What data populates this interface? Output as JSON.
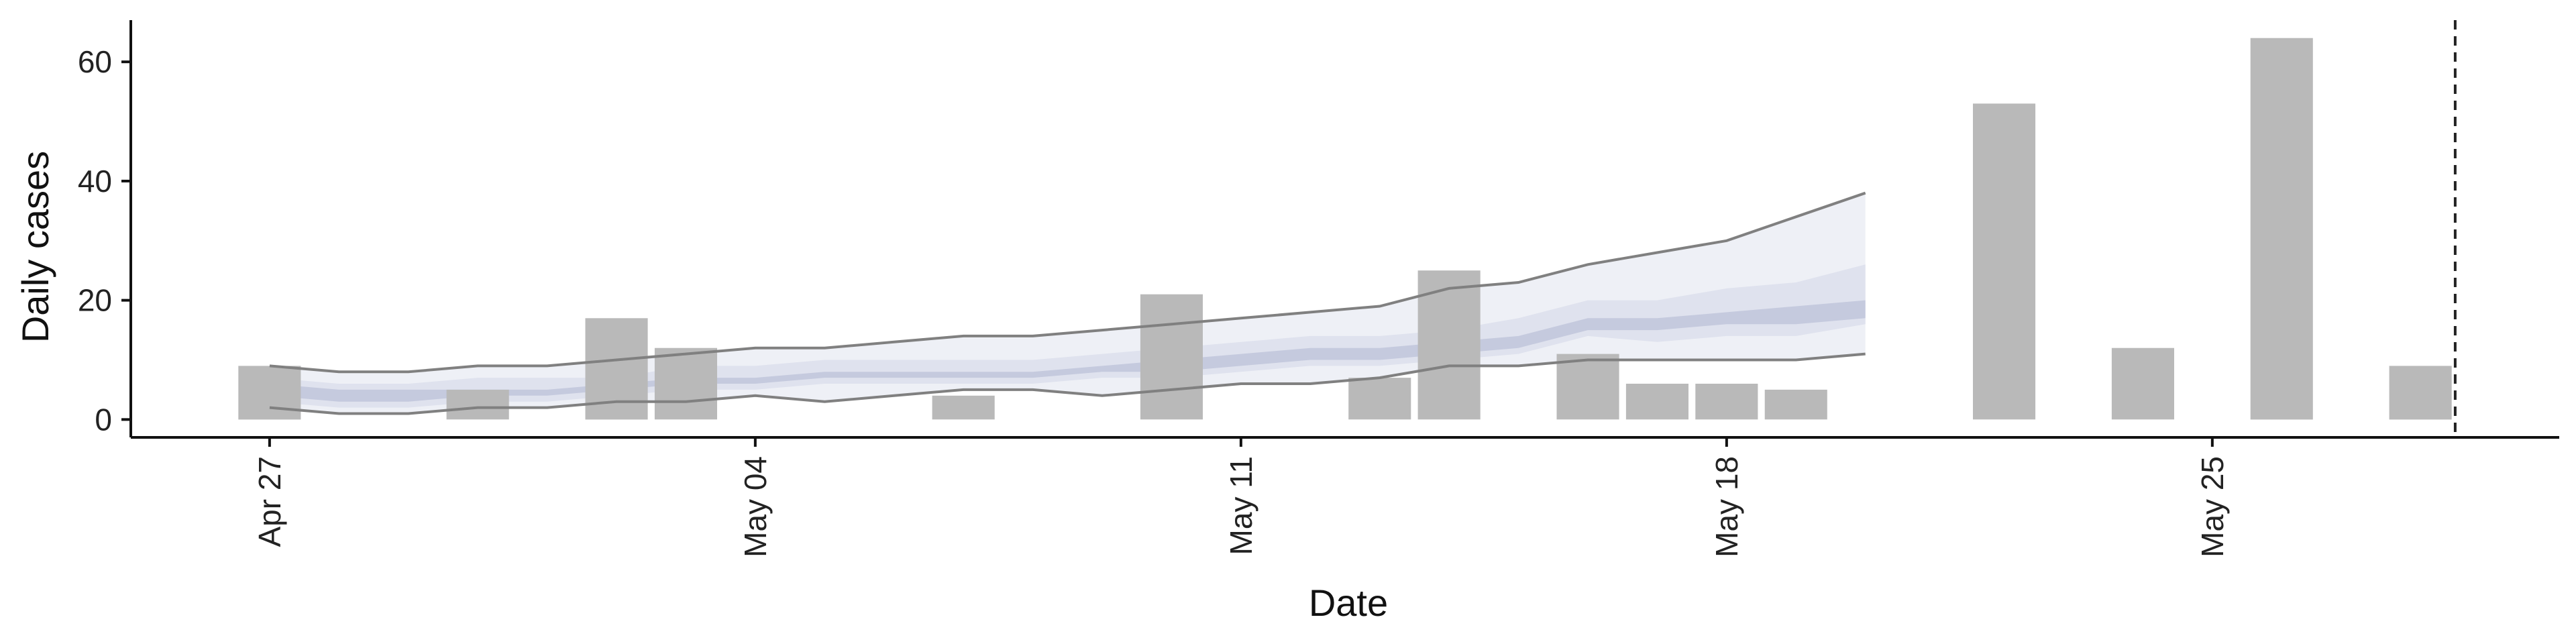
{
  "chart_data": {
    "type": "bar",
    "xlabel": "Date",
    "ylabel": "Daily cases",
    "ylim": [
      -3,
      67
    ],
    "xlim": [
      "2020-04-25",
      "2020-05-30"
    ],
    "y_ticks": [
      0,
      20,
      40,
      60
    ],
    "x_ticks": [
      {
        "date": "2020-04-27",
        "label": "Apr 27"
      },
      {
        "date": "2020-05-04",
        "label": "May 04"
      },
      {
        "date": "2020-05-11",
        "label": "May 11"
      },
      {
        "date": "2020-05-18",
        "label": "May 18"
      },
      {
        "date": "2020-05-25",
        "label": "May 25"
      }
    ],
    "grid": false,
    "bars": [
      {
        "date": "2020-04-27",
        "value": 9
      },
      {
        "date": "2020-04-30",
        "value": 5
      },
      {
        "date": "2020-05-02",
        "value": 17
      },
      {
        "date": "2020-05-03",
        "value": 12
      },
      {
        "date": "2020-05-07",
        "value": 4
      },
      {
        "date": "2020-05-10",
        "value": 21
      },
      {
        "date": "2020-05-13",
        "value": 7
      },
      {
        "date": "2020-05-14",
        "value": 25
      },
      {
        "date": "2020-05-16",
        "value": 11
      },
      {
        "date": "2020-05-17",
        "value": 6
      },
      {
        "date": "2020-05-18",
        "value": 6
      },
      {
        "date": "2020-05-19",
        "value": 5
      },
      {
        "date": "2020-05-22",
        "value": 53
      },
      {
        "date": "2020-05-24",
        "value": 12
      },
      {
        "date": "2020-05-26",
        "value": 64
      },
      {
        "date": "2020-05-28",
        "value": 9
      }
    ],
    "vline_date": "2020-05-28",
    "band_dates": [
      "2020-04-27",
      "2020-04-28",
      "2020-04-29",
      "2020-04-30",
      "2020-05-01",
      "2020-05-02",
      "2020-05-03",
      "2020-05-04",
      "2020-05-05",
      "2020-05-06",
      "2020-05-07",
      "2020-05-08",
      "2020-05-09",
      "2020-05-10",
      "2020-05-11",
      "2020-05-12",
      "2020-05-13",
      "2020-05-14",
      "2020-05-15",
      "2020-05-16",
      "2020-05-17",
      "2020-05-18",
      "2020-05-19",
      "2020-05-20"
    ],
    "outer_band": {
      "lower": [
        2,
        1,
        1,
        2,
        2,
        3,
        3,
        4,
        3,
        4,
        5,
        5,
        4,
        5,
        6,
        6,
        7,
        9,
        9,
        10,
        10,
        10,
        10,
        11
      ],
      "upper": [
        9,
        8,
        8,
        9,
        9,
        10,
        11,
        12,
        12,
        13,
        14,
        14,
        15,
        16,
        17,
        18,
        19,
        22,
        23,
        26,
        28,
        30,
        34,
        38
      ]
    },
    "middle_band": {
      "lower": [
        3,
        2,
        2,
        3,
        3,
        4,
        5,
        5,
        6,
        6,
        6,
        6,
        7,
        7,
        8,
        9,
        9,
        10,
        11,
        14,
        13,
        14,
        14,
        16
      ],
      "upper": [
        7,
        6,
        6,
        7,
        7,
        7,
        9,
        9,
        10,
        10,
        10,
        10,
        11,
        12,
        13,
        14,
        14,
        15,
        17,
        20,
        20,
        22,
        23,
        26
      ]
    },
    "inner_band": {
      "lower": [
        4,
        3,
        3,
        4,
        4,
        5,
        6,
        6,
        7,
        7,
        7,
        7,
        8,
        8,
        9,
        10,
        10,
        11,
        12,
        15,
        15,
        16,
        16,
        17
      ],
      "upper": [
        6,
        5,
        5,
        5,
        5,
        6,
        7,
        7,
        8,
        8,
        8,
        8,
        9,
        10,
        11,
        12,
        12,
        13,
        14,
        17,
        17,
        18,
        19,
        20
      ]
    },
    "colors": {
      "bar": "#b9b9b9",
      "outer_band": "#eef0f6",
      "middle_band": "#dfe2ee",
      "inner_band": "#c5cade",
      "bound_line": "#808080",
      "vline": "#222222",
      "axis": "#111111"
    }
  }
}
